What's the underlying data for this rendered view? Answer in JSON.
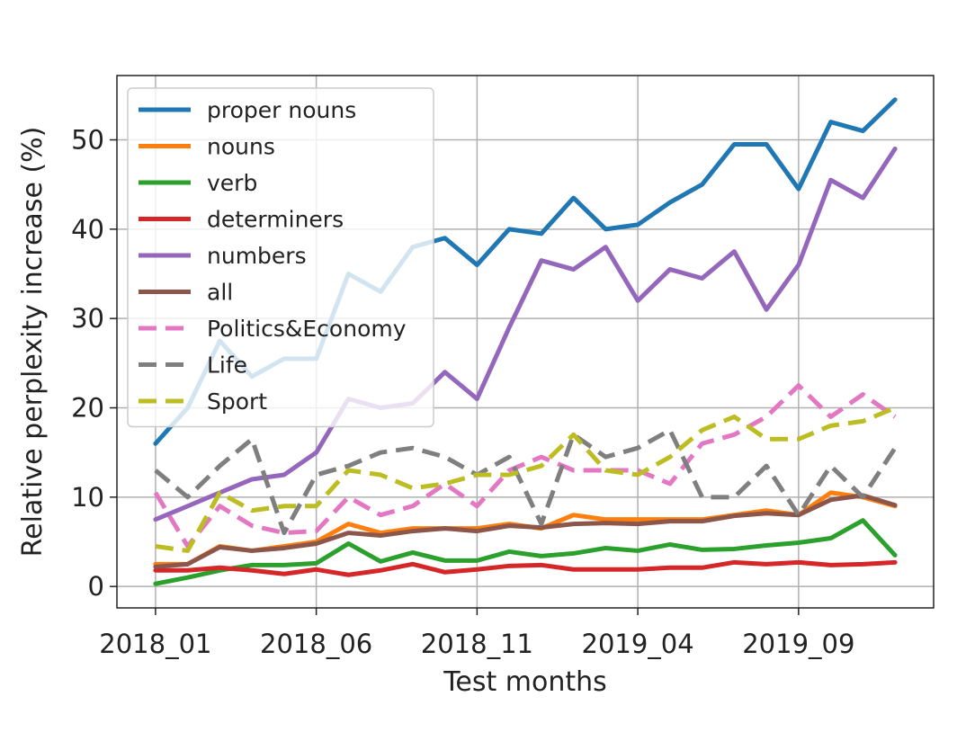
{
  "chart_data": {
    "type": "line",
    "title": "",
    "xlabel": "Test months",
    "ylabel": "Relative perplexity increase (%)",
    "x": [
      0,
      1,
      2,
      3,
      4,
      5,
      6,
      7,
      8,
      9,
      10,
      11,
      12,
      13,
      14,
      15,
      16,
      17,
      18,
      19,
      20,
      21,
      22,
      23
    ],
    "xticks": [
      0,
      5,
      10,
      15,
      20
    ],
    "xtick_labels": [
      "2018_01",
      "2018_06",
      "2018_11",
      "2019_04",
      "2019_09"
    ],
    "xlim": [
      -1.2,
      24.2
    ],
    "yticks": [
      0,
      10,
      20,
      30,
      40,
      50
    ],
    "ytick_labels": [
      "0",
      "10",
      "20",
      "30",
      "40",
      "50"
    ],
    "ylim": [
      -2.4,
      57.2
    ],
    "grid": true,
    "legend_position": "upper-left",
    "series": [
      {
        "name": "proper nouns",
        "color": "#1f77b4",
        "style": "solid",
        "values": [
          16,
          20,
          27.5,
          23.5,
          25.5,
          25.5,
          35,
          33,
          38,
          39,
          36,
          40,
          39.5,
          43.5,
          40,
          40.5,
          43,
          45,
          49.5,
          49.5,
          44.5,
          52,
          51,
          54.5
        ]
      },
      {
        "name": "nouns",
        "color": "#ff7f0e",
        "style": "solid",
        "values": [
          2.5,
          2.5,
          4.5,
          4,
          4.5,
          5,
          7,
          6,
          6.5,
          6.5,
          6.5,
          7,
          6.5,
          8,
          7.5,
          7.5,
          7.5,
          7.5,
          8,
          8.5,
          8,
          10.5,
          10,
          9
        ]
      },
      {
        "name": "verb",
        "color": "#2ca02c",
        "style": "solid",
        "values": [
          0.3,
          1,
          1.8,
          2.4,
          2.4,
          2.6,
          4.8,
          2.8,
          3.8,
          2.9,
          2.9,
          3.9,
          3.4,
          3.7,
          4.3,
          4,
          4.7,
          4.1,
          4.2,
          4.6,
          4.9,
          5.4,
          7.4,
          3.5
        ]
      },
      {
        "name": "determiners",
        "color": "#d62728",
        "style": "solid",
        "values": [
          1.8,
          1.8,
          2.1,
          1.8,
          1.4,
          1.9,
          1.3,
          1.8,
          2.5,
          1.6,
          1.9,
          2.3,
          2.4,
          1.9,
          1.9,
          1.9,
          2.1,
          2.1,
          2.7,
          2.5,
          2.7,
          2.4,
          2.5,
          2.7
        ]
      },
      {
        "name": "numbers",
        "color": "#9467bd",
        "style": "solid",
        "values": [
          7.5,
          9,
          10.5,
          12,
          12.5,
          15,
          21,
          20,
          20.5,
          24,
          21,
          29,
          36.5,
          35.5,
          38,
          32,
          35.5,
          34.5,
          37.5,
          31,
          36,
          45.5,
          43.5,
          49
        ]
      },
      {
        "name": "all",
        "color": "#8c564b",
        "style": "solid",
        "values": [
          2.2,
          2.5,
          4.4,
          4,
          4.3,
          4.8,
          6,
          5.7,
          6.2,
          6.5,
          6.2,
          6.8,
          6.6,
          7,
          7.1,
          7,
          7.3,
          7.3,
          7.9,
          8.2,
          8,
          9.7,
          10.2,
          9.1
        ]
      },
      {
        "name": "Politics&Economy",
        "color": "#e377c2",
        "style": "dashed",
        "values": [
          10.5,
          4.5,
          9,
          6.8,
          6,
          6.2,
          10,
          8,
          9,
          11.5,
          9,
          13,
          14.5,
          13,
          13,
          13,
          11.5,
          16,
          17,
          19,
          22.5,
          19,
          21.5,
          19
        ]
      },
      {
        "name": "Life",
        "color": "#7f7f7f",
        "style": "dashed",
        "values": [
          13,
          10,
          13.5,
          16.5,
          6,
          12.5,
          13.5,
          15,
          15.5,
          14.5,
          12.5,
          14.5,
          7,
          17,
          14.5,
          15.5,
          17.5,
          10,
          10,
          13.5,
          8,
          13.5,
          10,
          15.5
        ]
      },
      {
        "name": "Sport",
        "color": "#bcbd22",
        "style": "dashed",
        "values": [
          4.5,
          4,
          10.5,
          8.5,
          9,
          9,
          13,
          12.5,
          11,
          11.5,
          12.5,
          12.5,
          13.5,
          17,
          13,
          12.5,
          14.5,
          17.5,
          19,
          16.5,
          16.5,
          18,
          18.5,
          20
        ]
      }
    ]
  }
}
